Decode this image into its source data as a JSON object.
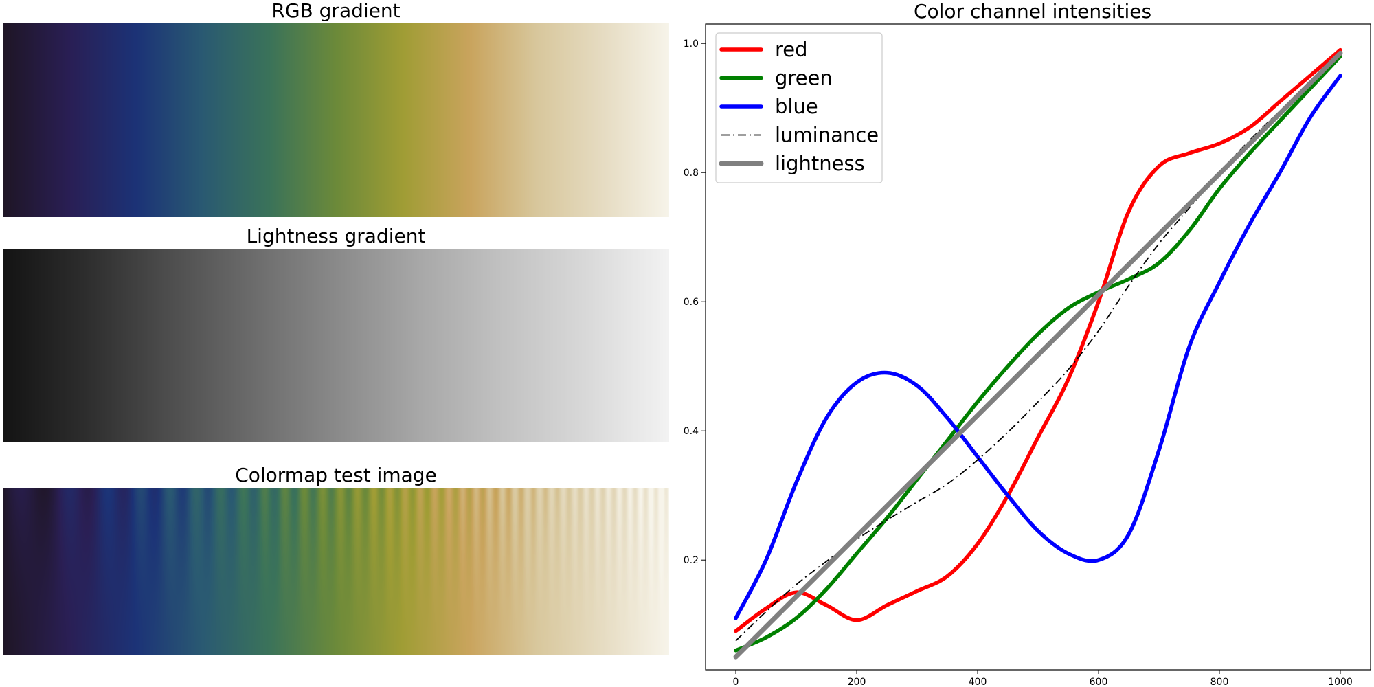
{
  "panels": {
    "rgb_title": "RGB gradient",
    "lightness_title": "Lightness gradient",
    "test_title": "Colormap test image"
  },
  "colormap": {
    "stops": [
      "#1f1626",
      "#2a1f55",
      "#1c3377",
      "#2a5a72",
      "#3b735a",
      "#6c8a3a",
      "#a09d35",
      "#c9a45d",
      "#d8c79c",
      "#e6dcc2",
      "#f7f4ea"
    ],
    "lightness_stops": [
      "#141414",
      "#2e2e2e",
      "#4e4e4e",
      "#6c6c6c",
      "#8a8a8a",
      "#a8a8a8",
      "#c2c2c2",
      "#d9d9d9",
      "#f3f3f3"
    ],
    "test_pattern": "sinusoidal stripes, frequency increasing left to right, amplitude fading top to bottom"
  },
  "chart_data": {
    "type": "line",
    "title": "Color channel intensities",
    "xlabel": "",
    "ylabel": "",
    "xlim": [
      -50,
      1050
    ],
    "ylim": [
      0.03,
      1.03
    ],
    "xticks": [
      "0",
      "200",
      "400",
      "600",
      "800",
      "1000"
    ],
    "yticks": [
      "0.2",
      "0.4",
      "0.6",
      "0.8",
      "1.0"
    ],
    "grid": false,
    "legend_position": "top-left",
    "series": [
      {
        "name": "red",
        "color": "#ff0000",
        "style": "solid-thick",
        "x": [
          0,
          50,
          100,
          150,
          200,
          250,
          300,
          350,
          400,
          450,
          500,
          550,
          600,
          650,
          700,
          750,
          800,
          850,
          900,
          950,
          1000
        ],
        "y": [
          0.09,
          0.125,
          0.15,
          0.13,
          0.107,
          0.13,
          0.152,
          0.175,
          0.225,
          0.3,
          0.39,
          0.48,
          0.6,
          0.74,
          0.81,
          0.83,
          0.845,
          0.87,
          0.91,
          0.95,
          0.99
        ]
      },
      {
        "name": "green",
        "color": "#008000",
        "style": "solid-thick",
        "x": [
          0,
          50,
          100,
          150,
          200,
          250,
          300,
          350,
          400,
          450,
          500,
          550,
          600,
          650,
          700,
          750,
          800,
          850,
          900,
          950,
          1000
        ],
        "y": [
          0.06,
          0.08,
          0.11,
          0.155,
          0.21,
          0.265,
          0.325,
          0.385,
          0.445,
          0.5,
          0.55,
          0.59,
          0.615,
          0.635,
          0.66,
          0.71,
          0.775,
          0.83,
          0.88,
          0.93,
          0.98
        ]
      },
      {
        "name": "blue",
        "color": "#0000ff",
        "style": "solid-thick",
        "x": [
          0,
          50,
          100,
          150,
          200,
          250,
          300,
          350,
          400,
          450,
          500,
          550,
          600,
          650,
          700,
          750,
          800,
          850,
          900,
          950,
          1000
        ],
        "y": [
          0.11,
          0.2,
          0.32,
          0.42,
          0.475,
          0.49,
          0.47,
          0.42,
          0.36,
          0.3,
          0.245,
          0.21,
          0.2,
          0.24,
          0.37,
          0.53,
          0.63,
          0.72,
          0.8,
          0.885,
          0.95
        ]
      },
      {
        "name": "luminance",
        "color": "#000000",
        "style": "dashdot",
        "x": [
          0,
          50,
          100,
          150,
          200,
          250,
          300,
          350,
          400,
          450,
          500,
          550,
          600,
          650,
          700,
          750,
          800,
          850,
          900,
          950,
          1000
        ],
        "y": [
          0.075,
          0.12,
          0.162,
          0.198,
          0.232,
          0.262,
          0.29,
          0.318,
          0.355,
          0.398,
          0.445,
          0.495,
          0.555,
          0.625,
          0.69,
          0.745,
          0.8,
          0.85,
          0.895,
          0.935,
          0.985
        ]
      },
      {
        "name": "lightness",
        "color": "#808080",
        "style": "solid-thick",
        "x": [
          0,
          1000
        ],
        "y": [
          0.05,
          0.985
        ]
      }
    ]
  }
}
